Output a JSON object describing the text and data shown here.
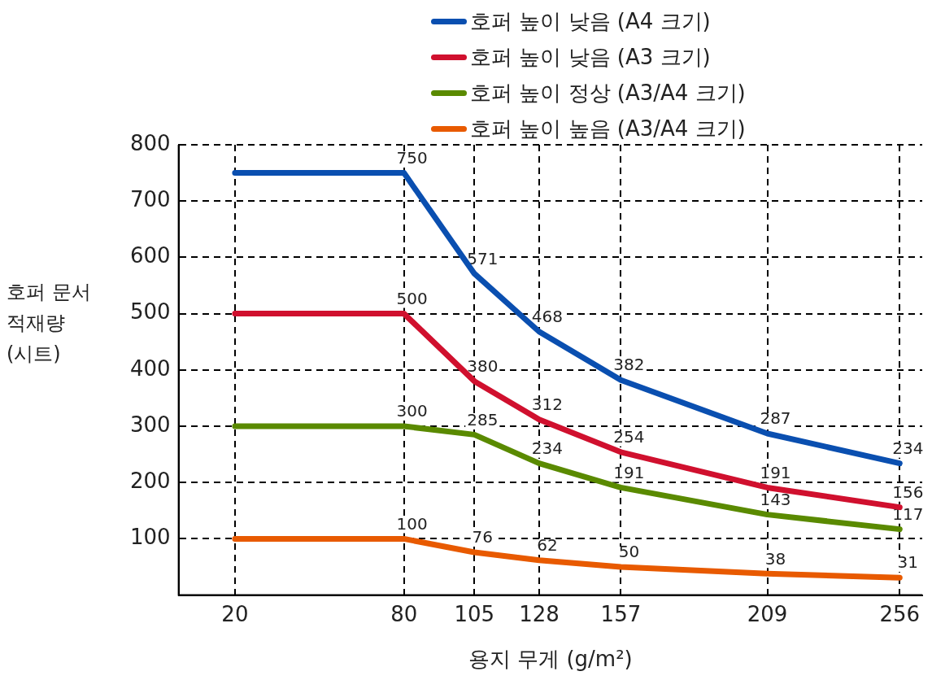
{
  "chart_data": {
    "type": "line",
    "xlabel": "용지 무게 (g/m²)",
    "ylabel": "호퍼 문서 적재량 (시트)",
    "x": [
      20,
      80,
      105,
      128,
      157,
      209,
      256
    ],
    "xlim": [
      0,
      264
    ],
    "xticks": [
      20,
      80,
      105,
      128,
      157,
      209,
      256
    ],
    "ylim": [
      0,
      800
    ],
    "yticks": [
      100,
      200,
      300,
      400,
      500,
      600,
      700,
      800
    ],
    "grid": true,
    "legend": "top",
    "marker": "none",
    "line_style": "solid",
    "series": [
      {
        "name": "호퍼 높이 낮음 (A4 크기)",
        "color": "#0a4fb0",
        "values": [
          750,
          750,
          571,
          468,
          382,
          287,
          234
        ],
        "value_labels": [
          null,
          "750",
          "571",
          "468",
          "382",
          "287",
          "234"
        ]
      },
      {
        "name": "호퍼 높이 낮음 (A3 크기)",
        "color": "#d0102e",
        "values": [
          500,
          500,
          380,
          312,
          254,
          191,
          156
        ],
        "value_labels": [
          null,
          "500",
          "380",
          "312",
          "254",
          "191",
          "156"
        ]
      },
      {
        "name": "호퍼 높이 정상 (A3/A4 크기)",
        "color": "#5a8a00",
        "values": [
          300,
          300,
          285,
          234,
          191,
          143,
          117
        ],
        "value_labels": [
          null,
          "300",
          "285",
          "234",
          "191",
          "143",
          "117"
        ]
      },
      {
        "name": "호퍼 높이 높음 (A3/A4 크기)",
        "color": "#e85a00",
        "values": [
          100,
          100,
          76,
          62,
          50,
          38,
          31
        ],
        "value_labels": [
          null,
          "100",
          "76",
          "62",
          "50",
          "38",
          "31"
        ]
      }
    ]
  }
}
